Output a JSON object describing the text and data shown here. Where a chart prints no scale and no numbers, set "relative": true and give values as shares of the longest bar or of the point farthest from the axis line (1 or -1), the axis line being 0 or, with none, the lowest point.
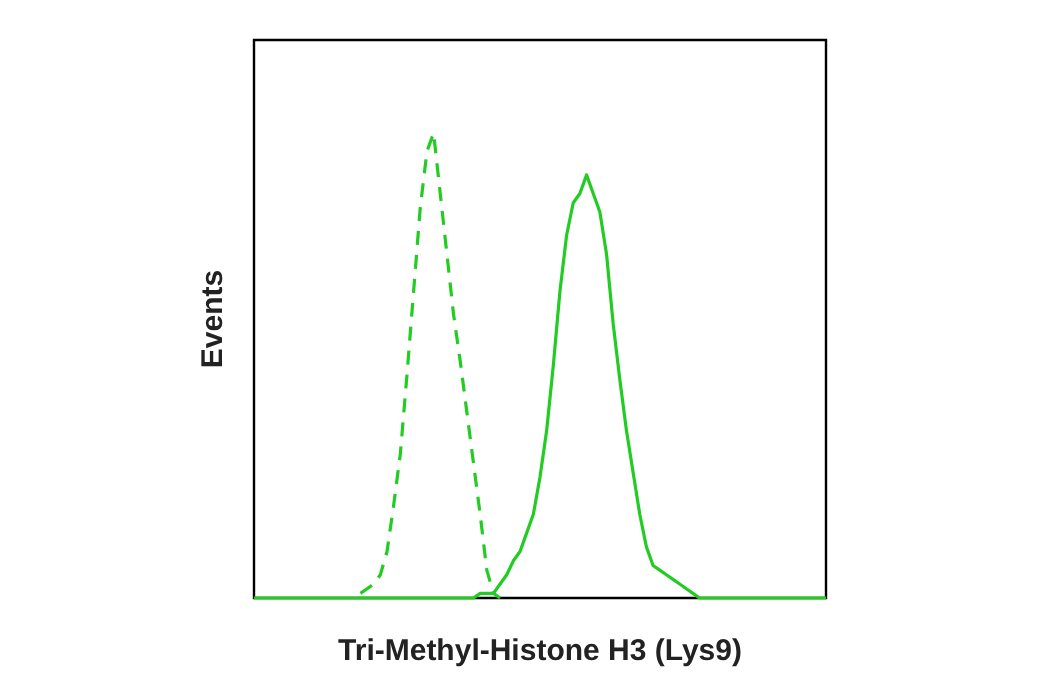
{
  "chart_data": {
    "type": "line",
    "relative": true,
    "xlabel": "Tri-Methyl-Histone H3 (Lys9)",
    "ylabel": "Events",
    "legend": false,
    "marker": "none",
    "categories": [
      null,
      null,
      null,
      null,
      null,
      null,
      null,
      null,
      null,
      null,
      null,
      null,
      null,
      null,
      null,
      null,
      null,
      null,
      null,
      null,
      null,
      null,
      null,
      null,
      null,
      null,
      null,
      null,
      null,
      null,
      null,
      null,
      null,
      null,
      null,
      null,
      null,
      null,
      null,
      null,
      null,
      null,
      null,
      null,
      null,
      null,
      null,
      null,
      null,
      null,
      null,
      null,
      null,
      null,
      null,
      null,
      null,
      null,
      null,
      null,
      null,
      null,
      null,
      null,
      null,
      null,
      null,
      null,
      null,
      null,
      null,
      null,
      null,
      null,
      null,
      null,
      null,
      null,
      null,
      null,
      null,
      null,
      null,
      null,
      null,
      null,
      null
    ],
    "series": [
      {
        "color": "#22cc22",
        "line_style": "dashed",
        "values": [
          null,
          null,
          null,
          null,
          null,
          null,
          null,
          null,
          null,
          null,
          null,
          null,
          null,
          null,
          null,
          null,
          0.01,
          0.02,
          0.03,
          0.05,
          0.1,
          0.2,
          0.31,
          0.48,
          0.66,
          0.84,
          0.96,
          1,
          0.87,
          0.74,
          0.61,
          0.51,
          0.4,
          0.29,
          0.18,
          0.06,
          0.01,
          0,
          null,
          null,
          null,
          null,
          null,
          null,
          null,
          null,
          null,
          null,
          null,
          null,
          null,
          null,
          null,
          null,
          null,
          null,
          null,
          null,
          null,
          null,
          null,
          null,
          null,
          null,
          null,
          null,
          null,
          null,
          null,
          null,
          null,
          null,
          null,
          null,
          null,
          null,
          null,
          null,
          null,
          null,
          null,
          null,
          null,
          null,
          null,
          null,
          null
        ]
      },
      {
        "color": "#22cc22",
        "line_style": "solid",
        "values": [
          0,
          0,
          0,
          0,
          0,
          0,
          0,
          0,
          0,
          0,
          0,
          0,
          0,
          0,
          0,
          0,
          0,
          0,
          0,
          0,
          0,
          0,
          0,
          0,
          0,
          0,
          0,
          0,
          0,
          0,
          0,
          0,
          0,
          0,
          0.01,
          0.01,
          0.01,
          0.03,
          0.05,
          0.08,
          0.1,
          0.14,
          0.18,
          0.26,
          0.36,
          0.5,
          0.66,
          0.78,
          0.85,
          0.87,
          0.91,
          0.87,
          0.83,
          0.74,
          0.59,
          0.47,
          0.36,
          0.27,
          0.18,
          0.11,
          0.07,
          0.06,
          0.05,
          0.04,
          0.03,
          0.02,
          0.01,
          0,
          0,
          0,
          0,
          0,
          0,
          0,
          0,
          0,
          0,
          0,
          0,
          0,
          0,
          0,
          0,
          0,
          0,
          0,
          0
        ]
      }
    ]
  }
}
